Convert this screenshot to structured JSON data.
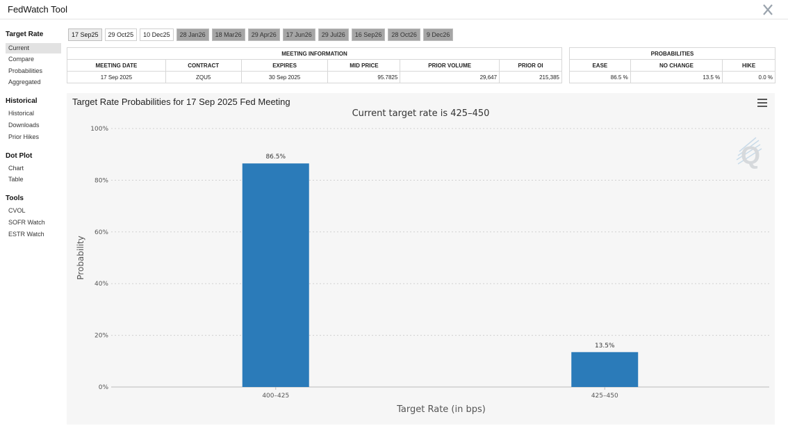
{
  "app": {
    "title": "FedWatch Tool"
  },
  "sidebar": {
    "sections": [
      {
        "heading": "Target Rate",
        "items": [
          "Current",
          "Compare",
          "Probabilities",
          "Aggregated"
        ]
      },
      {
        "heading": "Historical",
        "items": [
          "Historical",
          "Downloads",
          "Prior Hikes"
        ]
      },
      {
        "heading": "Dot Plot",
        "items": [
          "Chart",
          "Table"
        ]
      },
      {
        "heading": "Tools",
        "items": [
          "CVOL",
          "SOFR Watch",
          "ESTR Watch"
        ]
      }
    ],
    "active_item": "Current"
  },
  "tabs": [
    "17 Sep25",
    "29 Oct25",
    "10 Dec25",
    "28 Jan26",
    "18 Mar26",
    "29 Apr26",
    "17 Jun26",
    "29 Jul26",
    "16 Sep26",
    "28 Oct26",
    "9 Dec26"
  ],
  "meeting_info": {
    "heading": "MEETING INFORMATION",
    "columns": [
      "MEETING DATE",
      "CONTRACT",
      "EXPIRES",
      "MID PRICE",
      "PRIOR VOLUME",
      "PRIOR OI"
    ],
    "values": [
      "17 Sep 2025",
      "ZQU5",
      "30 Sep 2025",
      "95.7825",
      "29,647",
      "215,385"
    ]
  },
  "probabilities": {
    "heading": "PROBABILITIES",
    "columns": [
      "EASE",
      "NO CHANGE",
      "HIKE"
    ],
    "values": [
      "86.5 %",
      "13.5 %",
      "0.0 %"
    ]
  },
  "chart_panel": {
    "title": "Target Rate Probabilities for 17 Sep 2025 Fed Meeting",
    "subtitle": "Current target rate is 425–450"
  },
  "chart_data": {
    "type": "bar",
    "title": "Target Rate Probabilities for 17 Sep 2025 Fed Meeting",
    "subtitle": "Current target rate is 425–450",
    "categories": [
      "400–425",
      "425–450"
    ],
    "values": [
      86.5,
      13.5
    ],
    "data_labels": [
      "86.5%",
      "13.5%"
    ],
    "xlabel": "Target Rate (in bps)",
    "ylabel": "Probability",
    "ylim": [
      0,
      100
    ],
    "yticks": [
      "0%",
      "20%",
      "40%",
      "60%",
      "80%",
      "100%"
    ],
    "grid": true,
    "bar_color": "#2b7bb9"
  }
}
